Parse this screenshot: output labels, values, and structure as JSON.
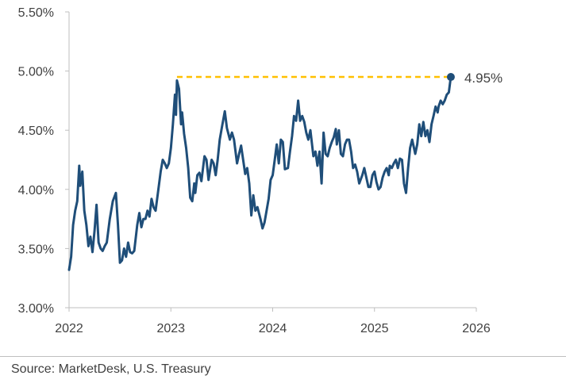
{
  "chart_data": {
    "type": "line",
    "title": "",
    "xlabel": "",
    "ylabel": "",
    "x_ticks": [
      "2022",
      "2023",
      "2024",
      "2025",
      "2026"
    ],
    "y_ticks": [
      "3.00%",
      "3.50%",
      "4.00%",
      "4.50%",
      "5.00%",
      "5.50%"
    ],
    "xlim": [
      2022.0,
      2026.0
    ],
    "ylim": [
      3.0,
      5.5
    ],
    "grid": false,
    "legend": "none",
    "series": [
      {
        "color": "#1f4e79",
        "points": [
          [
            2022.0,
            3.32
          ],
          [
            2022.02,
            3.43
          ],
          [
            2022.04,
            3.7
          ],
          [
            2022.06,
            3.82
          ],
          [
            2022.08,
            3.9
          ],
          [
            2022.1,
            4.2
          ],
          [
            2022.11,
            4.03
          ],
          [
            2022.13,
            4.15
          ],
          [
            2022.15,
            3.82
          ],
          [
            2022.17,
            3.7
          ],
          [
            2022.19,
            3.52
          ],
          [
            2022.21,
            3.6
          ],
          [
            2022.23,
            3.47
          ],
          [
            2022.25,
            3.65
          ],
          [
            2022.27,
            3.87
          ],
          [
            2022.29,
            3.55
          ],
          [
            2022.31,
            3.5
          ],
          [
            2022.33,
            3.48
          ],
          [
            2022.35,
            3.52
          ],
          [
            2022.37,
            3.55
          ],
          [
            2022.4,
            3.75
          ],
          [
            2022.43,
            3.9
          ],
          [
            2022.46,
            3.97
          ],
          [
            2022.48,
            3.7
          ],
          [
            2022.5,
            3.38
          ],
          [
            2022.52,
            3.4
          ],
          [
            2022.54,
            3.5
          ],
          [
            2022.56,
            3.43
          ],
          [
            2022.58,
            3.55
          ],
          [
            2022.6,
            3.47
          ],
          [
            2022.62,
            3.46
          ],
          [
            2022.64,
            3.48
          ],
          [
            2022.67,
            3.7
          ],
          [
            2022.69,
            3.8
          ],
          [
            2022.71,
            3.68
          ],
          [
            2022.73,
            3.75
          ],
          [
            2022.75,
            3.75
          ],
          [
            2022.77,
            3.82
          ],
          [
            2022.79,
            3.77
          ],
          [
            2022.81,
            3.92
          ],
          [
            2022.83,
            3.85
          ],
          [
            2022.85,
            3.82
          ],
          [
            2022.88,
            4.02
          ],
          [
            2022.9,
            4.15
          ],
          [
            2022.92,
            4.25
          ],
          [
            2022.94,
            4.22
          ],
          [
            2022.96,
            4.18
          ],
          [
            2022.98,
            4.22
          ],
          [
            2023.0,
            4.35
          ],
          [
            2023.02,
            4.55
          ],
          [
            2023.04,
            4.8
          ],
          [
            2023.05,
            4.63
          ],
          [
            2023.06,
            4.92
          ],
          [
            2023.08,
            4.85
          ],
          [
            2023.1,
            4.55
          ],
          [
            2023.11,
            4.65
          ],
          [
            2023.13,
            4.47
          ],
          [
            2023.15,
            4.35
          ],
          [
            2023.17,
            4.18
          ],
          [
            2023.19,
            3.93
          ],
          [
            2023.21,
            3.9
          ],
          [
            2023.23,
            4.05
          ],
          [
            2023.24,
            3.97
          ],
          [
            2023.26,
            4.12
          ],
          [
            2023.28,
            4.14
          ],
          [
            2023.3,
            4.07
          ],
          [
            2023.33,
            4.28
          ],
          [
            2023.35,
            4.25
          ],
          [
            2023.37,
            4.08
          ],
          [
            2023.4,
            4.25
          ],
          [
            2023.42,
            4.22
          ],
          [
            2023.44,
            4.12
          ],
          [
            2023.46,
            4.25
          ],
          [
            2023.48,
            4.42
          ],
          [
            2023.5,
            4.52
          ],
          [
            2023.53,
            4.66
          ],
          [
            2023.55,
            4.52
          ],
          [
            2023.58,
            4.42
          ],
          [
            2023.6,
            4.48
          ],
          [
            2023.62,
            4.42
          ],
          [
            2023.65,
            4.22
          ],
          [
            2023.67,
            4.3
          ],
          [
            2023.69,
            4.37
          ],
          [
            2023.71,
            4.25
          ],
          [
            2023.73,
            4.13
          ],
          [
            2023.75,
            4.18
          ],
          [
            2023.77,
            4.05
          ],
          [
            2023.79,
            3.78
          ],
          [
            2023.81,
            3.95
          ],
          [
            2023.83,
            3.82
          ],
          [
            2023.85,
            3.85
          ],
          [
            2023.88,
            3.75
          ],
          [
            2023.9,
            3.67
          ],
          [
            2023.92,
            3.72
          ],
          [
            2023.94,
            3.82
          ],
          [
            2023.96,
            3.92
          ],
          [
            2023.98,
            4.08
          ],
          [
            2024.0,
            4.12
          ],
          [
            2024.02,
            4.25
          ],
          [
            2024.04,
            4.38
          ],
          [
            2024.06,
            4.22
          ],
          [
            2024.08,
            4.42
          ],
          [
            2024.1,
            4.4
          ],
          [
            2024.12,
            4.17
          ],
          [
            2024.15,
            4.18
          ],
          [
            2024.17,
            4.32
          ],
          [
            2024.19,
            4.45
          ],
          [
            2024.21,
            4.62
          ],
          [
            2024.23,
            4.58
          ],
          [
            2024.25,
            4.75
          ],
          [
            2024.27,
            4.58
          ],
          [
            2024.29,
            4.62
          ],
          [
            2024.31,
            4.57
          ],
          [
            2024.33,
            4.48
          ],
          [
            2024.35,
            4.42
          ],
          [
            2024.37,
            4.5
          ],
          [
            2024.4,
            4.28
          ],
          [
            2024.42,
            4.32
          ],
          [
            2024.44,
            4.2
          ],
          [
            2024.46,
            4.32
          ],
          [
            2024.48,
            4.05
          ],
          [
            2024.5,
            4.48
          ],
          [
            2024.52,
            4.3
          ],
          [
            2024.54,
            4.28
          ],
          [
            2024.56,
            4.35
          ],
          [
            2024.58,
            4.4
          ],
          [
            2024.6,
            4.44
          ],
          [
            2024.62,
            4.51
          ],
          [
            2024.63,
            4.38
          ],
          [
            2024.65,
            4.5
          ],
          [
            2024.67,
            4.3
          ],
          [
            2024.69,
            4.28
          ],
          [
            2024.71,
            4.38
          ],
          [
            2024.73,
            4.42
          ],
          [
            2024.75,
            4.42
          ],
          [
            2024.77,
            4.32
          ],
          [
            2024.79,
            4.18
          ],
          [
            2024.81,
            4.21
          ],
          [
            2024.83,
            4.15
          ],
          [
            2024.85,
            4.05
          ],
          [
            2024.88,
            4.12
          ],
          [
            2024.9,
            4.18
          ],
          [
            2024.92,
            4.1
          ],
          [
            2024.94,
            4.02
          ],
          [
            2024.96,
            4.02
          ],
          [
            2024.98,
            4.12
          ],
          [
            2025.0,
            4.15
          ],
          [
            2025.02,
            4.06
          ],
          [
            2025.04,
            4.0
          ],
          [
            2025.06,
            4.02
          ],
          [
            2025.08,
            4.1
          ],
          [
            2025.1,
            4.15
          ],
          [
            2025.12,
            4.18
          ],
          [
            2025.14,
            4.12
          ],
          [
            2025.15,
            4.2
          ],
          [
            2025.17,
            4.18
          ],
          [
            2025.19,
            4.22
          ],
          [
            2025.21,
            4.25
          ],
          [
            2025.23,
            4.18
          ],
          [
            2025.25,
            4.26
          ],
          [
            2025.27,
            4.25
          ],
          [
            2025.29,
            4.05
          ],
          [
            2025.31,
            3.97
          ],
          [
            2025.33,
            4.18
          ],
          [
            2025.35,
            4.35
          ],
          [
            2025.37,
            4.42
          ],
          [
            2025.4,
            4.3
          ],
          [
            2025.42,
            4.38
          ],
          [
            2025.44,
            4.55
          ],
          [
            2025.46,
            4.45
          ],
          [
            2025.48,
            4.57
          ],
          [
            2025.5,
            4.45
          ],
          [
            2025.52,
            4.5
          ],
          [
            2025.54,
            4.4
          ],
          [
            2025.56,
            4.55
          ],
          [
            2025.58,
            4.62
          ],
          [
            2025.6,
            4.7
          ],
          [
            2025.62,
            4.65
          ],
          [
            2025.63,
            4.7
          ],
          [
            2025.65,
            4.75
          ],
          [
            2025.67,
            4.72
          ],
          [
            2025.69,
            4.75
          ],
          [
            2025.71,
            4.8
          ],
          [
            2025.73,
            4.82
          ],
          [
            2025.75,
            4.95
          ]
        ]
      }
    ],
    "annotation": {
      "label": "4.95%",
      "value": 4.95,
      "start_x": 2023.06,
      "end_x": 2025.75,
      "color": "#ffc000"
    }
  },
  "footer": {
    "source": "Source: MarketDesk, U.S. Treasury"
  }
}
